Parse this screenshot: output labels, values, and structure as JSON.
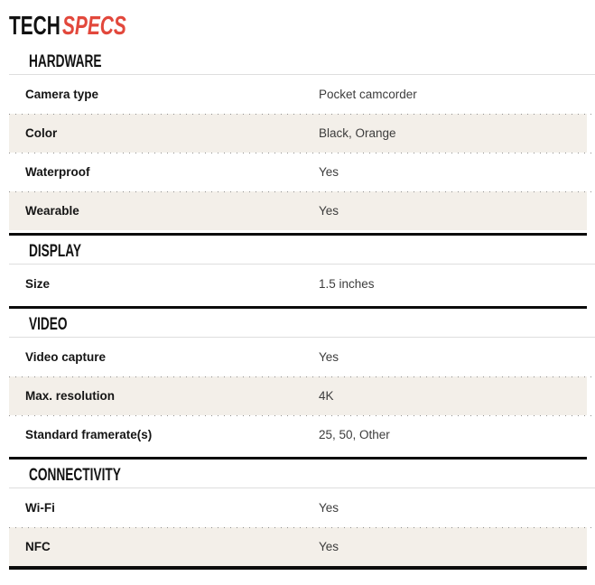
{
  "page_title": {
    "prefix": "TECH",
    "accent": "SPECS"
  },
  "colors": {
    "accent": "#e2483c",
    "row_alt_bg": "#f3efe9",
    "divider": "#0c0c0c",
    "underline": "#dedede",
    "dots": "#8f8f8f"
  },
  "sections": [
    {
      "title": "HARDWARE",
      "rows": [
        {
          "label": "Camera type",
          "value": "Pocket camcorder"
        },
        {
          "label": "Color",
          "value": "Black, Orange"
        },
        {
          "label": "Waterproof",
          "value": "Yes"
        },
        {
          "label": "Wearable",
          "value": "Yes"
        }
      ]
    },
    {
      "title": "DISPLAY",
      "rows": [
        {
          "label": "Size",
          "value": "1.5 inches"
        }
      ]
    },
    {
      "title": "VIDEO",
      "rows": [
        {
          "label": "Video capture",
          "value": "Yes"
        },
        {
          "label": "Max. resolution",
          "value": "4K"
        },
        {
          "label": "Standard framerate(s)",
          "value": "25, 50, Other"
        }
      ]
    },
    {
      "title": "CONNECTIVITY",
      "rows": [
        {
          "label": "Wi-Fi",
          "value": "Yes"
        },
        {
          "label": "NFC",
          "value": "Yes"
        }
      ]
    }
  ]
}
